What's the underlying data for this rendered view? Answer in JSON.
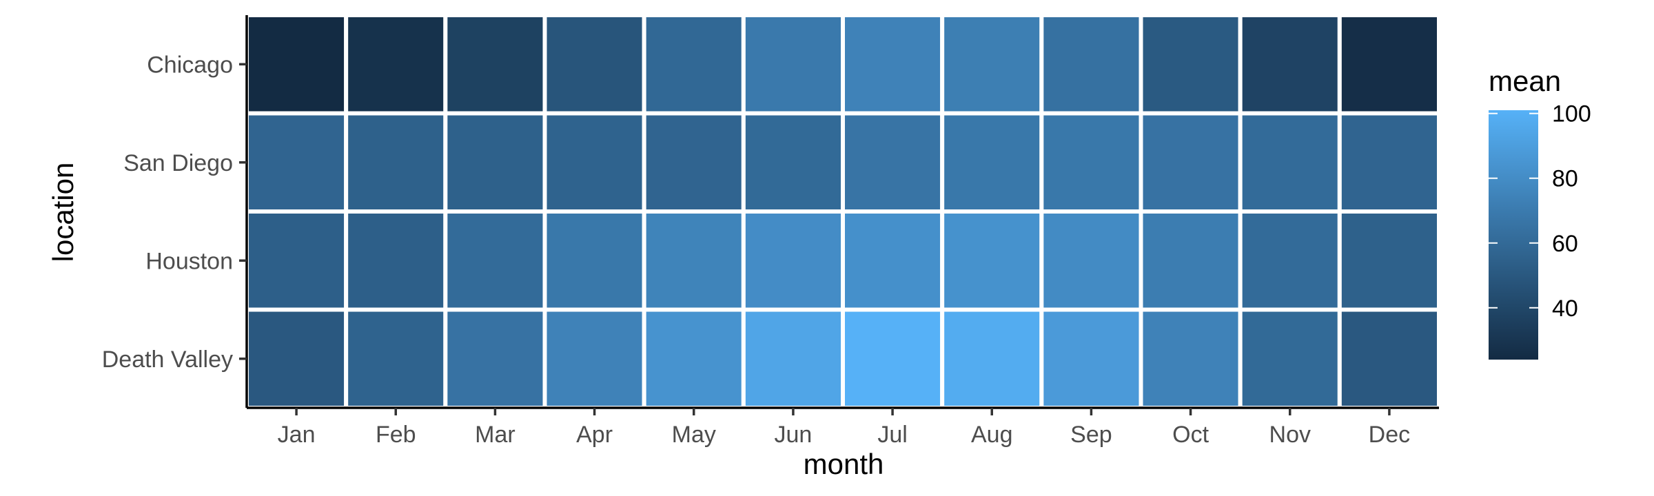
{
  "chart_data": {
    "type": "heatmap",
    "xlabel": "month",
    "ylabel": "location",
    "x_categories": [
      "Jan",
      "Feb",
      "Mar",
      "Apr",
      "May",
      "Jun",
      "Jul",
      "Aug",
      "Sep",
      "Oct",
      "Nov",
      "Dec"
    ],
    "y_categories": [
      "Chicago",
      "San Diego",
      "Houston",
      "Death Valley"
    ],
    "values": [
      [
        24,
        28,
        37,
        48,
        59,
        69,
        74,
        72,
        64,
        51,
        38,
        26
      ],
      [
        57,
        55,
        55,
        56,
        57,
        60,
        66,
        68,
        68,
        65,
        61,
        57
      ],
      [
        54,
        54,
        61,
        68,
        75,
        80,
        82,
        83,
        79,
        71,
        61,
        55
      ],
      [
        50,
        56,
        65,
        74,
        84,
        94,
        101,
        98,
        88,
        74,
        60,
        50
      ]
    ],
    "legend": {
      "title": "mean",
      "ticks": [
        40,
        60,
        80,
        100
      ],
      "range": [
        24,
        101
      ],
      "low_color": "#132B43",
      "high_color": "#56B1F7",
      "placement": "right"
    },
    "grid": false
  }
}
